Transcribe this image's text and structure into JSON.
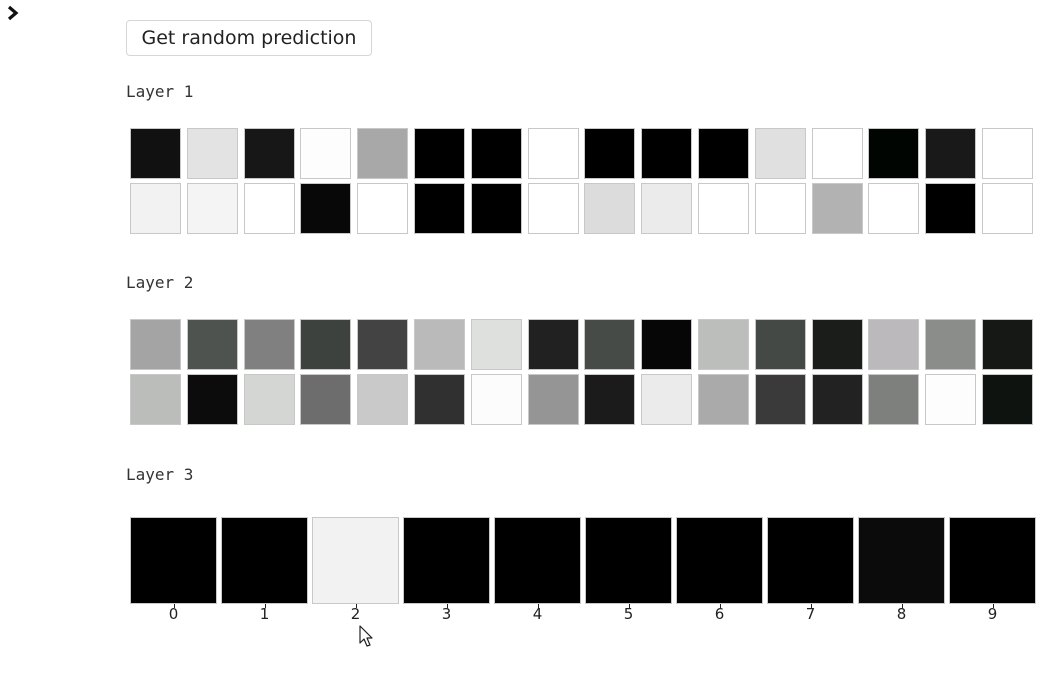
{
  "toolbar": {
    "button_label": "Get random prediction",
    "toggle_icon": "chevron-right-icon"
  },
  "layers": [
    {
      "label": "Layer 1",
      "rows": [
        [
          "#111111",
          "#e3e3e3",
          "#171717",
          "#fdfdfd",
          "#a7a8a7",
          "#000000",
          "#000000",
          "#ffffff",
          "#000000",
          "#000000",
          "#000000",
          "#dfe0df",
          "#ffffff",
          "#010501",
          "#191919",
          "#ffffff"
        ],
        [
          "#f2f2f2",
          "#f4f4f4",
          "#ffffff",
          "#080808",
          "#ffffff",
          "#000000",
          "#000000",
          "#ffffff",
          "#dcdcdc",
          "#ebebeb",
          "#ffffff",
          "#ffffff",
          "#b2b2b2",
          "#ffffff",
          "#000000",
          "#ffffff"
        ]
      ]
    },
    {
      "label": "Layer 2",
      "rows": [
        [
          "#a5a4a5",
          "#4f5350",
          "#7f807f",
          "#3e423f",
          "#434343",
          "#bbbabb",
          "#dde0dd",
          "#212121",
          "#474b48",
          "#060606",
          "#bcbebc",
          "#454945",
          "#1a1d1a",
          "#bbb9bb",
          "#8b8d8b",
          "#151815"
        ],
        [
          "#bbbdbb",
          "#0c0c0c",
          "#d4d6d4",
          "#6d6d6d",
          "#c9c9c9",
          "#303030",
          "#fdfcfd",
          "#959595",
          "#1b1b1b",
          "#ebebeb",
          "#aaaaaa",
          "#3a3a3a",
          "#222222",
          "#7e807e",
          "#fefdfe",
          "#0f130f"
        ]
      ]
    },
    {
      "label": "Layer 3",
      "cells": [
        "#000000",
        "#000000",
        "#f2f2f2",
        "#000000",
        "#000000",
        "#000000",
        "#000000",
        "#000000",
        "#0b0b0b",
        "#000000"
      ],
      "ticks": [
        "0",
        "1",
        "2",
        "3",
        "4",
        "5",
        "6",
        "7",
        "8",
        "9"
      ]
    }
  ],
  "cursor_icon": "mouse-pointer-icon"
}
